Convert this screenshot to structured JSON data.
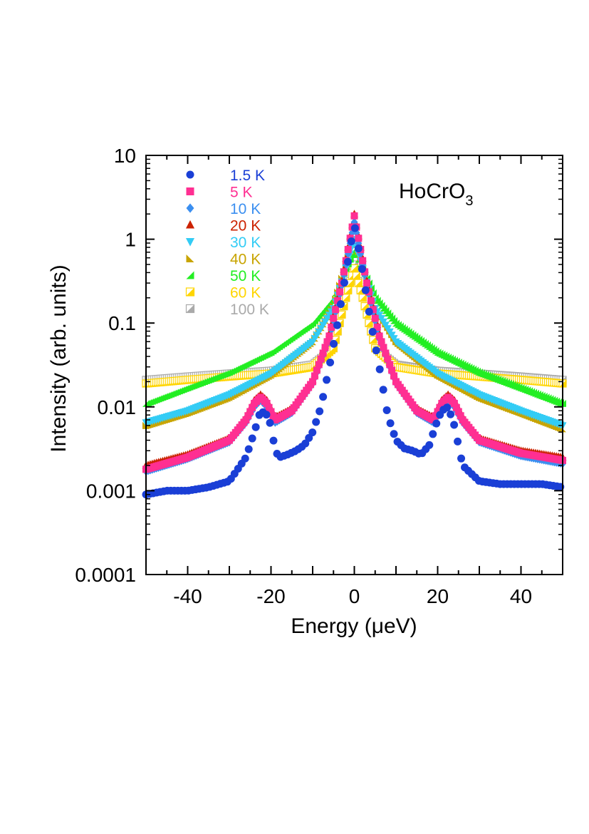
{
  "chart_data": {
    "type": "scatter",
    "title": "",
    "annotation": {
      "text": "HoCrO",
      "subscript": "3"
    },
    "xlabel": "Energy (μeV)",
    "ylabel": "Intensity (arb. units)",
    "xlim": [
      -50,
      50
    ],
    "ylim": [
      0.0001,
      10
    ],
    "yscale": "log",
    "xticks": [
      -40,
      -20,
      0,
      20,
      40
    ],
    "xtick_labels": [
      "-40",
      "-20",
      "0",
      "20",
      "40"
    ],
    "yticks": [
      0.0001,
      0.001,
      0.01,
      0.1,
      1,
      10
    ],
    "ytick_labels": [
      "0.0001",
      "0.001",
      "0.01",
      "0.1",
      "1",
      "10"
    ],
    "grid": false,
    "legend_position": "top-left",
    "series": [
      {
        "name": "1.5 K",
        "color": "#1a3fd6",
        "marker": "circle",
        "x": [
          -50,
          -45,
          -40,
          -35,
          -30,
          -26,
          -24,
          -22.5,
          -21,
          -20,
          -19,
          -18,
          -16,
          -14,
          -12,
          -10,
          -8,
          -6,
          -4,
          -2,
          0,
          2,
          4,
          6,
          8,
          10,
          12,
          14,
          16,
          18,
          19,
          20,
          21,
          22.5,
          24,
          26,
          30,
          35,
          40,
          45,
          50
        ],
        "y": [
          0.0009,
          0.001,
          0.001,
          0.0011,
          0.0013,
          0.0025,
          0.005,
          0.009,
          0.008,
          0.006,
          0.003,
          0.0025,
          0.0027,
          0.003,
          0.0035,
          0.005,
          0.01,
          0.03,
          0.1,
          0.4,
          1.5,
          0.4,
          0.1,
          0.03,
          0.008,
          0.004,
          0.0032,
          0.003,
          0.0027,
          0.0035,
          0.005,
          0.007,
          0.009,
          0.01,
          0.006,
          0.002,
          0.0013,
          0.0012,
          0.0012,
          0.0012,
          0.0011
        ]
      },
      {
        "name": "5 K",
        "color": "#ff2f92",
        "marker": "square",
        "x": [
          -50,
          -40,
          -30,
          -26,
          -24,
          -22.5,
          -21,
          -19,
          -15,
          -10,
          -6,
          -3,
          0,
          3,
          6,
          10,
          15,
          19,
          21,
          22.5,
          24,
          26,
          30,
          40,
          50
        ],
        "y": [
          0.0018,
          0.0025,
          0.004,
          0.007,
          0.011,
          0.013,
          0.011,
          0.007,
          0.009,
          0.02,
          0.07,
          0.3,
          1.9,
          0.3,
          0.07,
          0.02,
          0.009,
          0.007,
          0.011,
          0.013,
          0.011,
          0.007,
          0.004,
          0.0028,
          0.0023
        ]
      },
      {
        "name": "10 K",
        "color": "#3b8ff0",
        "marker": "diamond",
        "x": [
          -50,
          -40,
          -30,
          -26,
          -24,
          -22.5,
          -21,
          -19,
          -15,
          -10,
          -6,
          -3,
          0,
          3,
          6,
          10,
          15,
          19,
          21,
          22.5,
          24,
          26,
          30,
          40,
          50
        ],
        "y": [
          0.0017,
          0.0024,
          0.0038,
          0.0065,
          0.01,
          0.012,
          0.01,
          0.0065,
          0.0085,
          0.019,
          0.065,
          0.28,
          1.6,
          0.28,
          0.065,
          0.019,
          0.0085,
          0.0065,
          0.01,
          0.012,
          0.01,
          0.0065,
          0.0038,
          0.0026,
          0.0021
        ]
      },
      {
        "name": "20 K",
        "color": "#cc2200",
        "marker": "triangle-up",
        "x": [
          -50,
          -40,
          -30,
          -26,
          -24,
          -22.5,
          -21,
          -19,
          -15,
          -10,
          -6,
          -3,
          0,
          3,
          6,
          10,
          15,
          19,
          21,
          22.5,
          24,
          26,
          30,
          40,
          50
        ],
        "y": [
          0.002,
          0.0027,
          0.0042,
          0.0075,
          0.012,
          0.014,
          0.012,
          0.0075,
          0.0095,
          0.021,
          0.075,
          0.32,
          2.0,
          0.32,
          0.075,
          0.021,
          0.0095,
          0.0075,
          0.012,
          0.014,
          0.012,
          0.0075,
          0.0042,
          0.003,
          0.0025
        ]
      },
      {
        "name": "30 K",
        "color": "#33ccf5",
        "marker": "triangle-down",
        "x": [
          -50,
          -40,
          -30,
          -20,
          -10,
          -5,
          -2,
          0,
          2,
          5,
          10,
          20,
          30,
          40,
          50
        ],
        "y": [
          0.0065,
          0.009,
          0.014,
          0.025,
          0.06,
          0.15,
          0.45,
          1.0,
          0.45,
          0.15,
          0.06,
          0.025,
          0.014,
          0.009,
          0.006
        ]
      },
      {
        "name": "40 K",
        "color": "#c8a400",
        "marker": "triangle-right",
        "x": [
          -50,
          -40,
          -30,
          -20,
          -10,
          -5,
          -2,
          0,
          2,
          5,
          10,
          20,
          30,
          40,
          50
        ],
        "y": [
          0.006,
          0.0085,
          0.013,
          0.024,
          0.06,
          0.16,
          0.5,
          1.05,
          0.5,
          0.16,
          0.06,
          0.024,
          0.013,
          0.0085,
          0.0055
        ]
      },
      {
        "name": "50 K",
        "color": "#22ee22",
        "marker": "triangle-left",
        "x": [
          -50,
          -40,
          -30,
          -20,
          -10,
          -5,
          -2,
          0,
          2,
          5,
          10,
          20,
          30,
          40,
          50
        ],
        "y": [
          0.011,
          0.017,
          0.026,
          0.045,
          0.1,
          0.2,
          0.45,
          0.75,
          0.45,
          0.2,
          0.1,
          0.045,
          0.026,
          0.017,
          0.011
        ]
      },
      {
        "name": "60 K",
        "color": "#ffd500",
        "marker": "square-half",
        "x": [
          -50,
          -40,
          -30,
          -20,
          -10,
          -5,
          -2,
          0,
          2,
          5,
          10,
          20,
          30,
          40,
          50
        ],
        "y": [
          0.019,
          0.021,
          0.023,
          0.025,
          0.03,
          0.05,
          0.2,
          0.45,
          0.2,
          0.05,
          0.03,
          0.025,
          0.023,
          0.021,
          0.019
        ]
      },
      {
        "name": "100 K",
        "color": "#aaaaaa",
        "marker": "square-half",
        "x": [
          -50,
          -40,
          -30,
          -20,
          -10,
          -5,
          -2,
          0,
          2,
          5,
          10,
          20,
          30,
          40,
          50
        ],
        "y": [
          0.021,
          0.023,
          0.025,
          0.027,
          0.032,
          0.05,
          0.2,
          0.5,
          0.2,
          0.05,
          0.032,
          0.027,
          0.025,
          0.023,
          0.021
        ]
      }
    ]
  }
}
